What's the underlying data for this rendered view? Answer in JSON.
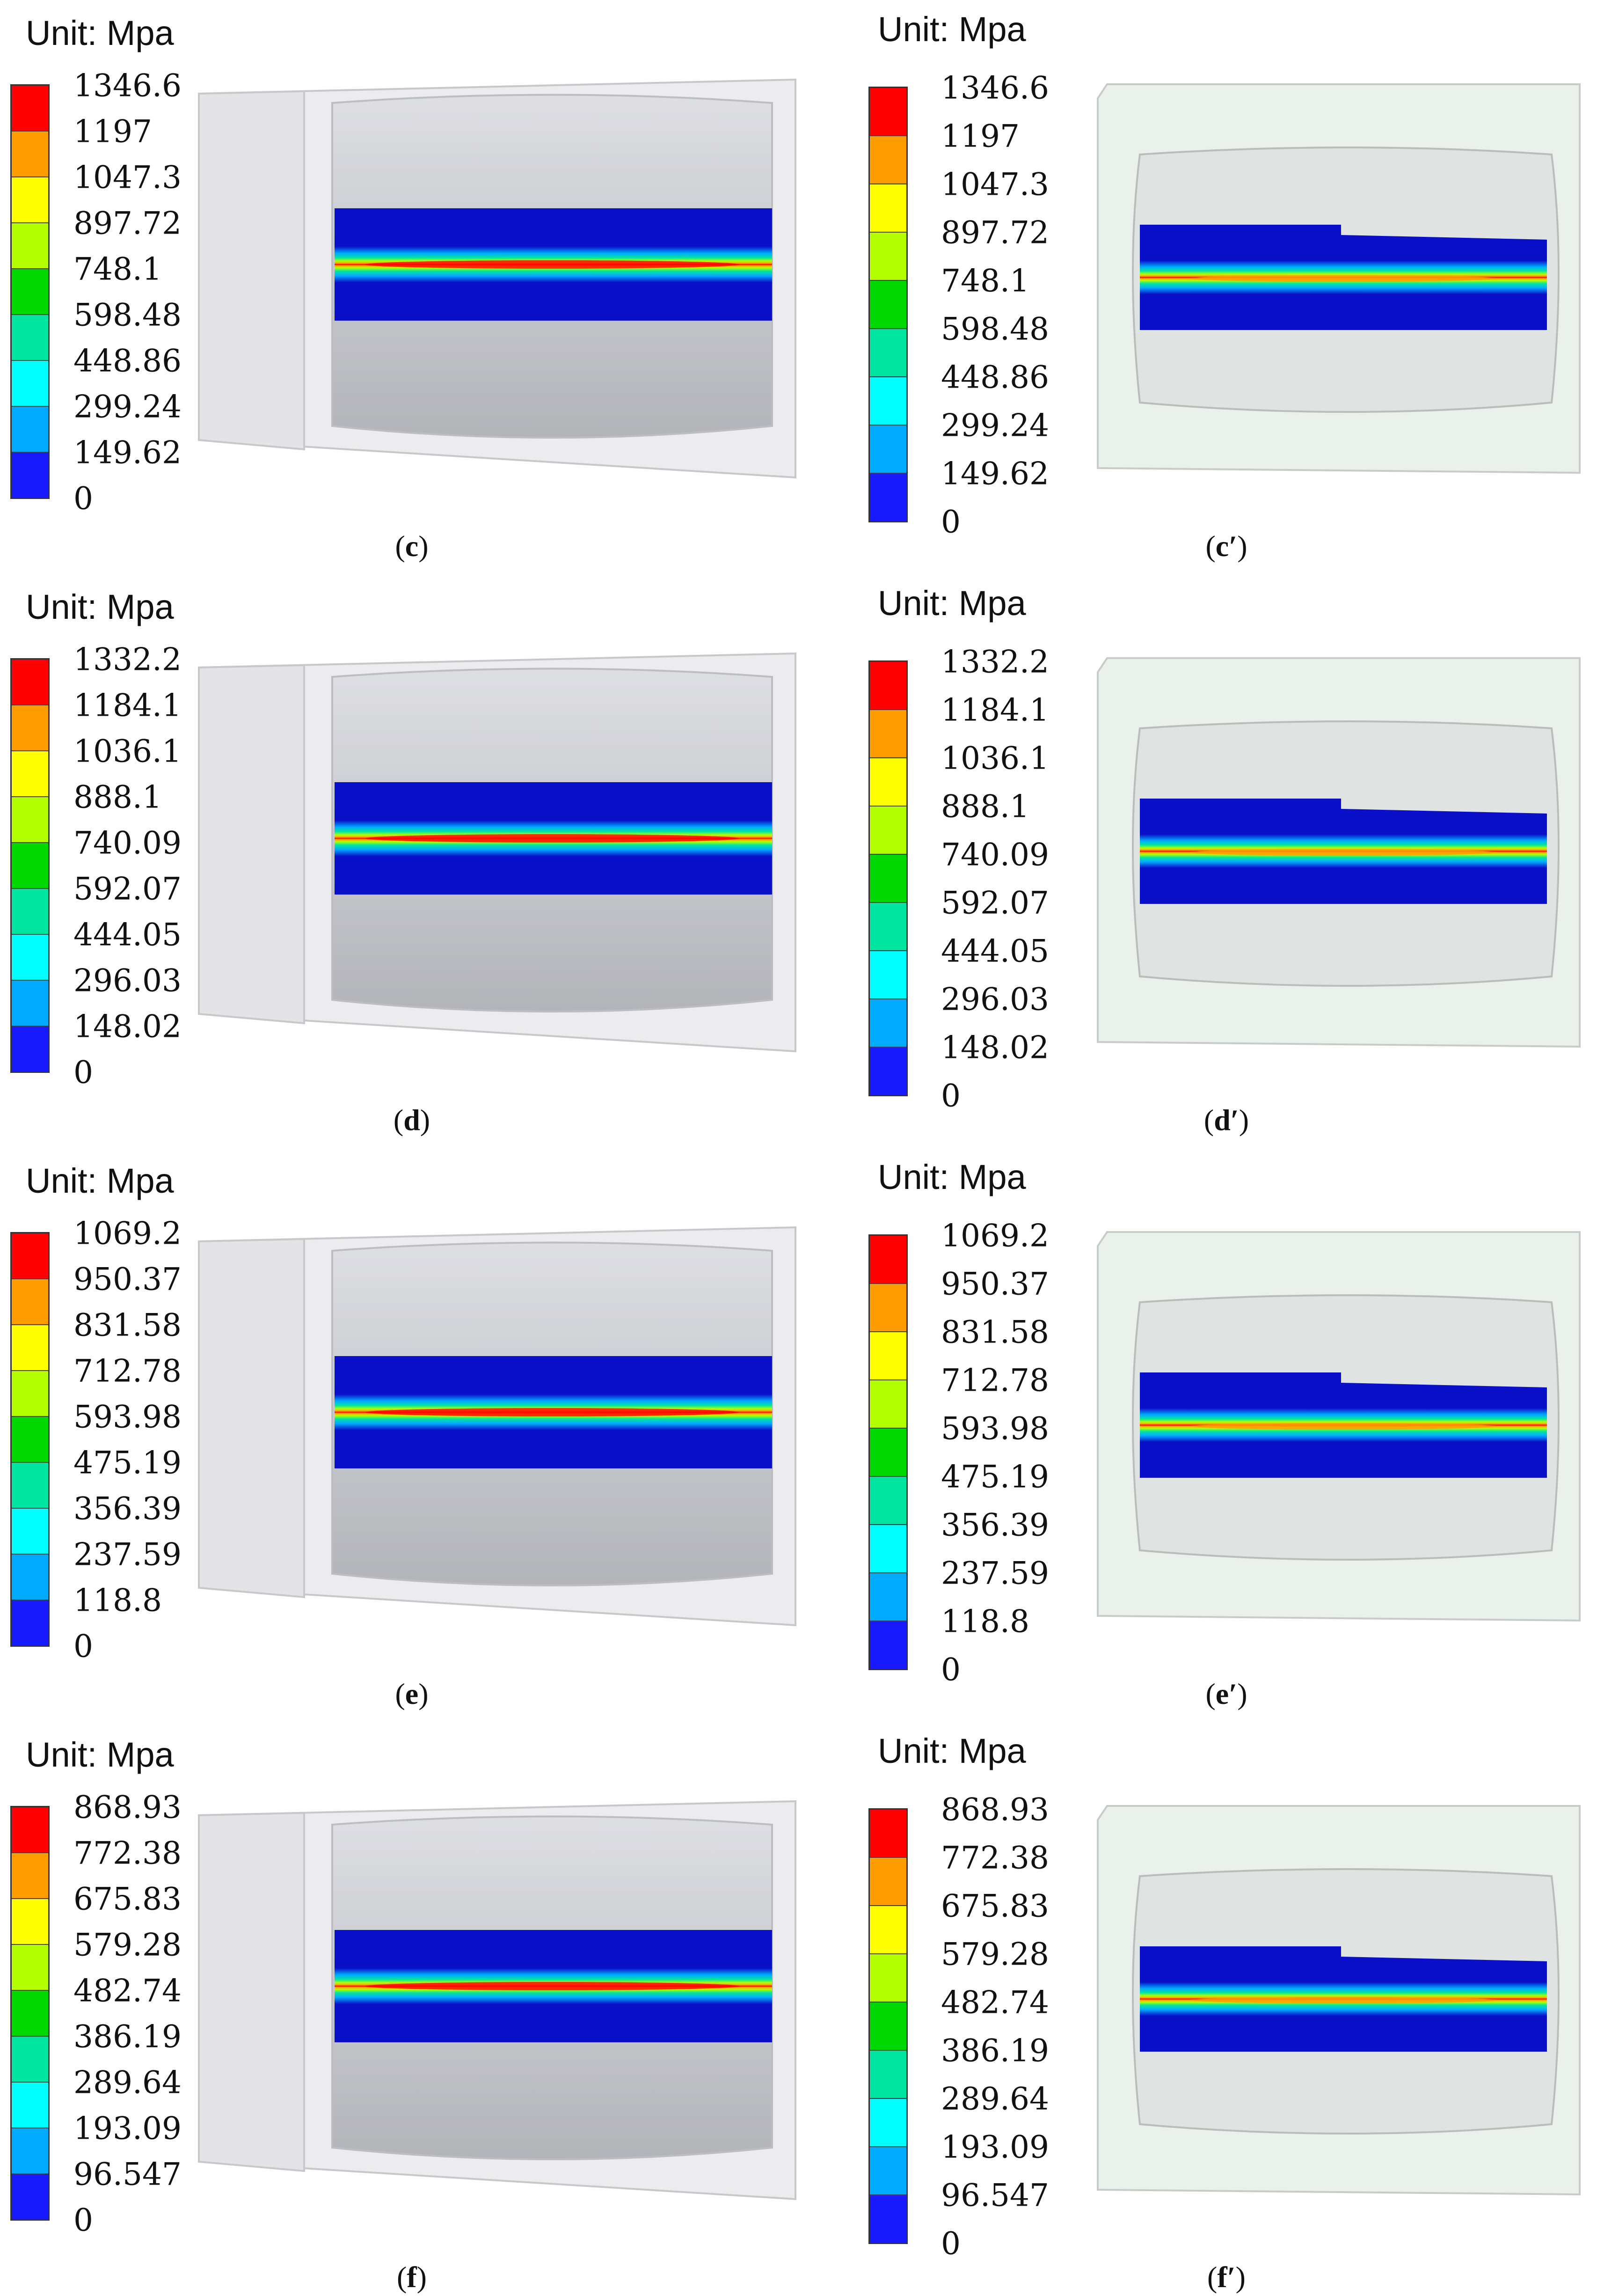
{
  "panels": [
    {
      "unit": "Unit: Mpa",
      "legend": [
        "1346.6",
        "1197",
        "1047.3",
        "897.72",
        "748.1",
        "598.48",
        "448.86",
        "299.24",
        "149.62",
        "0"
      ],
      "caption": {
        "open": "(",
        "letter": "c",
        "prime": "",
        "close": ")"
      },
      "model_type": "full"
    },
    {
      "unit": "Unit: Mpa",
      "legend": [
        "1346.6",
        "1197",
        "1047.3",
        "897.72",
        "748.1",
        "598.48",
        "448.86",
        "299.24",
        "149.62",
        "0"
      ],
      "caption": {
        "open": "(",
        "letter": "c",
        "prime": "′",
        "close": ")"
      },
      "model_type": "half"
    },
    {
      "unit": "Unit: Mpa",
      "legend": [
        "1332.2",
        "1184.1",
        "1036.1",
        "888.1",
        "740.09",
        "592.07",
        "444.05",
        "296.03",
        "148.02",
        "0"
      ],
      "caption": {
        "open": "(",
        "letter": "d",
        "prime": "",
        "close": ")"
      },
      "model_type": "full"
    },
    {
      "unit": "Unit: Mpa",
      "legend": [
        "1332.2",
        "1184.1",
        "1036.1",
        "888.1",
        "740.09",
        "592.07",
        "444.05",
        "296.03",
        "148.02",
        "0"
      ],
      "caption": {
        "open": "(",
        "letter": "d",
        "prime": "′",
        "close": ")"
      },
      "model_type": "half"
    },
    {
      "unit": "Unit: Mpa",
      "legend": [
        "1069.2",
        "950.37",
        "831.58",
        "712.78",
        "593.98",
        "475.19",
        "356.39",
        "237.59",
        "118.8",
        "0"
      ],
      "caption": {
        "open": "(",
        "letter": "e",
        "prime": "",
        "close": ")"
      },
      "model_type": "full"
    },
    {
      "unit": "Unit: Mpa",
      "legend": [
        "1069.2",
        "950.37",
        "831.58",
        "712.78",
        "593.98",
        "475.19",
        "356.39",
        "237.59",
        "118.8",
        "0"
      ],
      "caption": {
        "open": "(",
        "letter": "e",
        "prime": "′",
        "close": ")"
      },
      "model_type": "half"
    },
    {
      "unit": "Unit: Mpa",
      "legend": [
        "868.93",
        "772.38",
        "675.83",
        "579.28",
        "482.74",
        "386.19",
        "289.64",
        "193.09",
        "96.547",
        "0"
      ],
      "caption": {
        "open": "(",
        "letter": "f",
        "prime": "",
        "close": ")"
      },
      "model_type": "full"
    },
    {
      "unit": "Unit: Mpa",
      "legend": [
        "868.93",
        "772.38",
        "675.83",
        "579.28",
        "482.74",
        "386.19",
        "289.64",
        "193.09",
        "96.547",
        "0"
      ],
      "caption": {
        "open": "(",
        "letter": "f",
        "prime": "′",
        "close": ")"
      },
      "model_type": "half"
    }
  ],
  "legend_colors": [
    "#ff0000",
    "#ff9d00",
    "#ffff00",
    "#b3ff00",
    "#00d900",
    "#00e6a0",
    "#00ffff",
    "#00aaff",
    "#1a1aff"
  ],
  "colors": {
    "stress_low": "#0a10c8",
    "stress_high": "#ff0000",
    "housing": "#e6e6e8",
    "roller": "#c9cbd0",
    "half_housing": "#eaf0ea"
  }
}
